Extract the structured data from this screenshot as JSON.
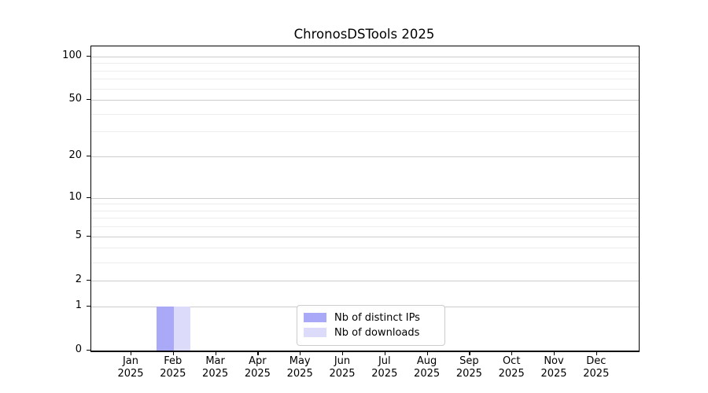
{
  "chart_data": {
    "type": "bar",
    "title": "ChronosDSTools 2025",
    "x_tick_labels": [
      [
        "Jan",
        "2025"
      ],
      [
        "Feb",
        "2025"
      ],
      [
        "Mar",
        "2025"
      ],
      [
        "Apr",
        "2025"
      ],
      [
        "May",
        "2025"
      ],
      [
        "Jun",
        "2025"
      ],
      [
        "Jul",
        "2025"
      ],
      [
        "Aug",
        "2025"
      ],
      [
        "Sep",
        "2025"
      ],
      [
        "Oct",
        "2025"
      ],
      [
        "Nov",
        "2025"
      ],
      [
        "Dec",
        "2025"
      ]
    ],
    "series": [
      {
        "name": "Nb of distinct IPs",
        "color": "#a9a9f7",
        "values": [
          0,
          1,
          0,
          0,
          0,
          0,
          0,
          0,
          0,
          0,
          0,
          0
        ]
      },
      {
        "name": "Nb of downloads",
        "color": "#dcdcfa",
        "values": [
          0,
          1,
          0,
          0,
          0,
          0,
          0,
          0,
          0,
          0,
          0,
          0
        ]
      }
    ],
    "y_axis": {
      "scale": "log1p",
      "max": 117,
      "major_ticks": [
        0,
        1,
        2,
        5,
        10,
        20,
        50,
        100
      ],
      "minor_ticks": [
        3,
        4,
        6,
        7,
        8,
        9,
        30,
        40,
        60,
        70,
        80,
        90
      ]
    },
    "legend_position": "lower center",
    "grid": "both",
    "colors": {
      "major_grid": "#cccccc",
      "minor_grid": "#ededed",
      "axis": "#000000"
    }
  }
}
